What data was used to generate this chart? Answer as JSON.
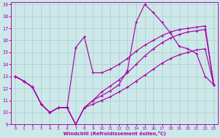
{
  "xlabel": "Windchill (Refroidissement éolien,°C)",
  "background_color": "#cce8e8",
  "grid_color": "#aacccc",
  "line_color": "#aa00aa",
  "xlim": [
    -0.5,
    23.5
  ],
  "ylim": [
    9,
    19.2
  ],
  "xticks": [
    0,
    1,
    2,
    3,
    4,
    5,
    6,
    7,
    8,
    9,
    10,
    11,
    12,
    13,
    14,
    15,
    16,
    17,
    18,
    19,
    20,
    21,
    22,
    23
  ],
  "yticks": [
    9,
    10,
    11,
    12,
    13,
    14,
    15,
    16,
    17,
    18,
    19
  ],
  "line1_x": [
    0,
    1,
    2,
    3,
    4,
    5,
    6,
    7,
    8,
    9,
    10,
    11,
    12,
    13,
    14,
    15,
    16,
    17,
    18,
    19,
    20,
    21,
    22,
    23
  ],
  "line1_y": [
    13.0,
    12.6,
    12.1,
    10.7,
    10.0,
    10.4,
    10.4,
    9.0,
    10.4,
    11.0,
    11.4,
    11.8,
    12.3,
    13.5,
    17.5,
    19.0,
    18.3,
    17.5,
    16.6,
    15.5,
    15.3,
    14.9,
    13.0,
    12.3
  ],
  "line2_x": [
    0,
    1,
    2,
    3,
    4,
    5,
    6,
    7,
    8,
    9,
    10,
    11,
    12,
    13,
    14,
    15,
    16,
    17,
    18,
    19,
    20,
    21,
    22,
    23
  ],
  "line2_y": [
    13.0,
    12.6,
    12.1,
    10.7,
    10.0,
    10.4,
    10.4,
    15.4,
    16.3,
    13.3,
    13.3,
    13.6,
    14.0,
    14.5,
    15.1,
    15.6,
    16.0,
    16.4,
    16.7,
    16.9,
    17.0,
    17.1,
    17.2,
    12.3
  ],
  "line3_x": [
    0,
    1,
    2,
    3,
    4,
    5,
    6,
    7,
    8,
    9,
    10,
    11,
    12,
    13,
    14,
    15,
    16,
    17,
    18,
    19,
    20,
    21,
    22,
    23
  ],
  "line3_y": [
    13.0,
    12.6,
    12.1,
    10.7,
    10.0,
    10.4,
    10.4,
    9.0,
    10.4,
    11.0,
    11.7,
    12.2,
    12.7,
    13.3,
    14.0,
    14.7,
    15.3,
    15.8,
    16.2,
    16.5,
    16.7,
    16.8,
    16.9,
    12.3
  ],
  "line4_x": [
    0,
    1,
    2,
    3,
    4,
    5,
    6,
    7,
    8,
    9,
    10,
    11,
    12,
    13,
    14,
    15,
    16,
    17,
    18,
    19,
    20,
    21,
    22,
    23
  ],
  "line4_y": [
    13.0,
    12.6,
    12.1,
    10.7,
    10.0,
    10.4,
    10.4,
    9.0,
    10.4,
    10.7,
    11.0,
    11.3,
    11.7,
    12.1,
    12.6,
    13.1,
    13.6,
    14.1,
    14.5,
    14.8,
    15.0,
    15.2,
    15.3,
    12.3
  ]
}
